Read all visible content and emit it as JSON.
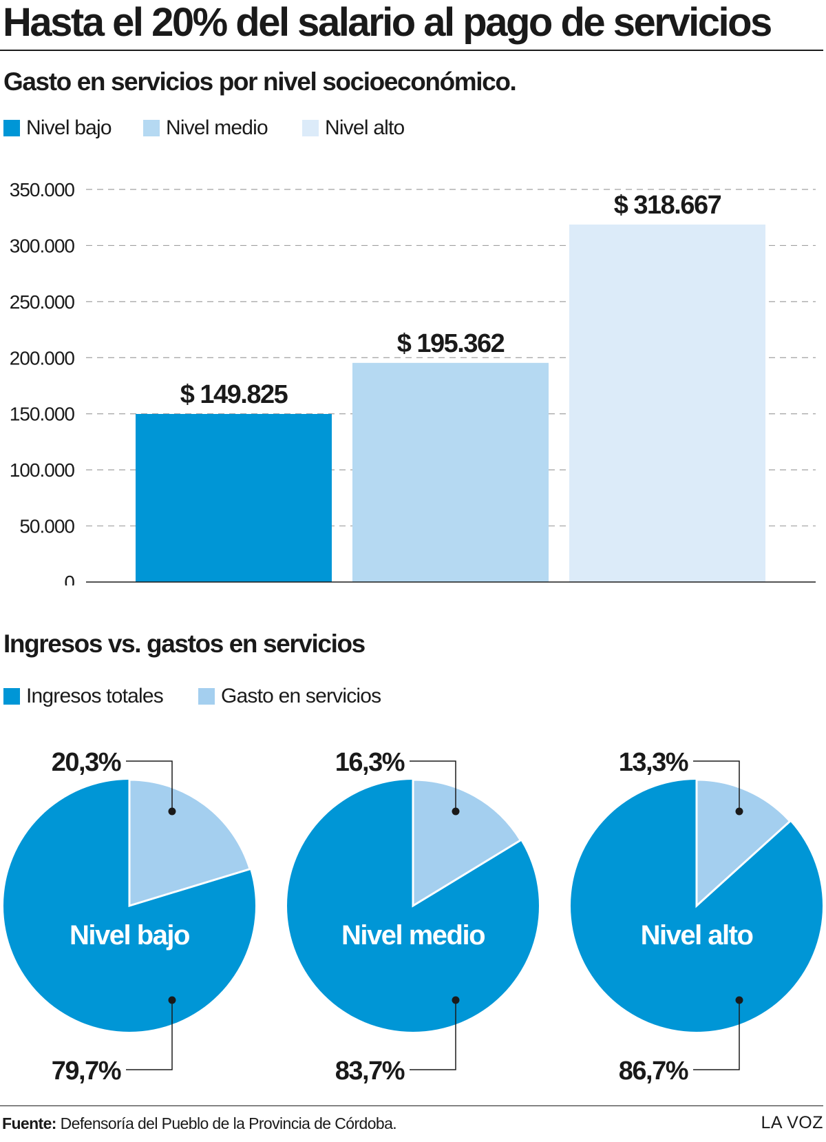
{
  "title": "Hasta el 20% del salario al pago de servicios",
  "colors": {
    "dark_blue": "#0096d6",
    "mid_blue": "#b5d9f2",
    "light_blue": "#dcebf9",
    "pie_light": "#a4cfef"
  },
  "chart_data": [
    {
      "type": "bar",
      "title": "Gasto en servicios por nivel socioeconómico.",
      "categories": [
        "Nivel bajo",
        "Nivel medio",
        "Nivel alto"
      ],
      "values": [
        149825,
        195362,
        318667
      ],
      "data_labels": [
        "$ 149.825",
        "$ 195.362",
        "$ 318.667"
      ],
      "legend": [
        "Nivel bajo",
        "Nivel medio",
        "Nivel alto"
      ],
      "ylim": [
        0,
        350000
      ],
      "yticks": [
        0,
        50000,
        100000,
        150000,
        200000,
        250000,
        300000,
        350000
      ],
      "ytick_labels": [
        "0",
        "50.000",
        "100.000",
        "150.000",
        "200.000",
        "250.000",
        "300.000",
        "350.000"
      ],
      "grid": true,
      "colors": [
        "#0096d6",
        "#b5d9f2",
        "#dcebf9"
      ]
    },
    {
      "type": "pie",
      "title": "Ingresos vs. gastos en servicios",
      "legend": [
        "Ingresos totales",
        "Gasto en servicios"
      ],
      "colors": [
        "#0096d6",
        "#a4cfef"
      ],
      "pies": [
        {
          "name": "Nivel bajo",
          "gasto": 20.3,
          "ingresos": 79.7,
          "gasto_label": "20,3%",
          "ingresos_label": "79,7%"
        },
        {
          "name": "Nivel medio",
          "gasto": 16.3,
          "ingresos": 83.7,
          "gasto_label": "16,3%",
          "ingresos_label": "83,7%"
        },
        {
          "name": "Nivel alto",
          "gasto": 13.3,
          "ingresos": 86.7,
          "gasto_label": "13,3%",
          "ingresos_label": "86,7%"
        }
      ]
    }
  ],
  "footer": {
    "source_label": "Fuente:",
    "source_text": " Defensoría del Pueblo de la Provincia de Córdoba.",
    "brand": "LA VOZ"
  }
}
